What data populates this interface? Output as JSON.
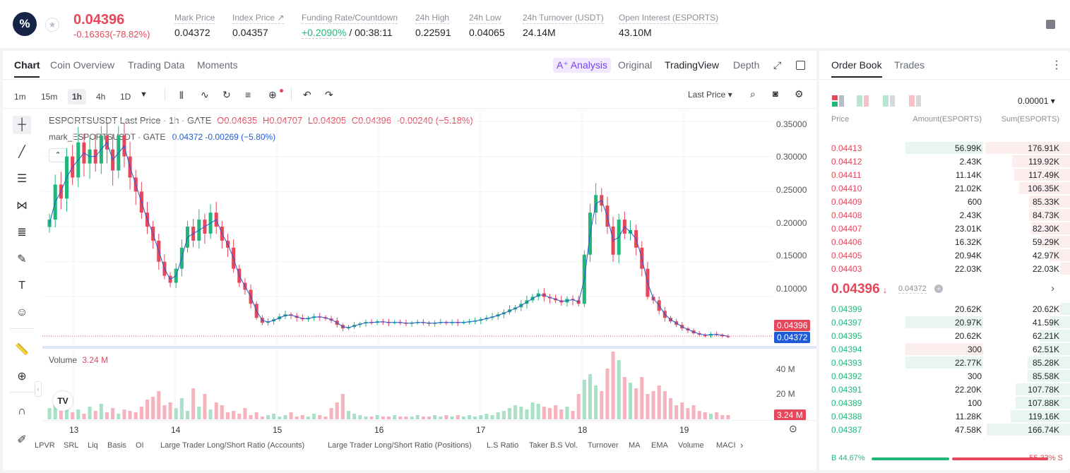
{
  "ticker": {
    "logo_text": "%",
    "star_icon": "star-icon",
    "price": "0.04396",
    "change": "-0.16363(-78.82%)",
    "stats": [
      {
        "label": "Mark Price",
        "value": "0.04372"
      },
      {
        "label": "Index Price ↗",
        "value": "0.04357"
      },
      {
        "label": "Funding Rate/Countdown",
        "value_green": "+0.2090%",
        "value": " / 00:38:11"
      },
      {
        "label": "24h High",
        "value": "0.22591"
      },
      {
        "label": "24h Low",
        "value": "0.04065"
      },
      {
        "label": "24h Turnover (USDT)",
        "value": "24.14M"
      },
      {
        "label": "Open Interest (ESPORTS)",
        "value": "43.10M"
      }
    ]
  },
  "chart_tabs": [
    "Chart",
    "Coin Overview",
    "Trading Data",
    "Moments"
  ],
  "view_tabs": {
    "ai": "A⁺ Analysis",
    "original": "Original",
    "tradingview": "TradingView",
    "depth": "Depth"
  },
  "intervals": [
    "1m",
    "15m",
    "1h",
    "4h",
    "1D"
  ],
  "active_interval": "1h",
  "last_price_select": "Last Price",
  "legend": {
    "line1_name": "ESPORTSUSDT Last Price · 1h · GATE",
    "o": "O0.04635",
    "h": "H0.04707",
    "l": "L0.04305",
    "c": "C0.04396",
    "chg": "-0.00240 (−5.18%)",
    "line2_name": "mark_ESPORTSUSDT · GATE",
    "line2_value": "0.04372 -0.00269 (−5.80%)"
  },
  "volume_legend": {
    "label": "Volume",
    "value": "3.24 M"
  },
  "colors": {
    "up": "#22b77a",
    "down": "#e5475b",
    "mark": "#1f5bd6",
    "accent_ai": "#7b3ff2"
  },
  "chart_data": {
    "type": "candlestick",
    "title": "ESPORTSUSDT Last Price · 1h · GATE",
    "y_ticks": [
      "0.35000",
      "0.30000",
      "0.25000",
      "0.20000",
      "0.15000",
      "0.10000"
    ],
    "ylim": [
      0.03,
      0.36
    ],
    "x_ticks": [
      "13",
      "14",
      "15",
      "16",
      "17",
      "18",
      "19"
    ],
    "last_price_label": "0.04396",
    "mark_price_label": "0.04372",
    "volume_ticks": [
      "40 M",
      "20 M"
    ],
    "volume_last_label": "3.24 M",
    "volume_ylim": [
      0,
      50
    ],
    "close_series": [
      0.21,
      0.26,
      0.24,
      0.3,
      0.27,
      0.32,
      0.29,
      0.31,
      0.29,
      0.33,
      0.31,
      0.28,
      0.33,
      0.3,
      0.27,
      0.25,
      0.22,
      0.2,
      0.18,
      0.15,
      0.13,
      0.12,
      0.14,
      0.17,
      0.2,
      0.18,
      0.21,
      0.19,
      0.22,
      0.2,
      0.18,
      0.17,
      0.14,
      0.12,
      0.11,
      0.09,
      0.07,
      0.063,
      0.065,
      0.068,
      0.072,
      0.075,
      0.073,
      0.07,
      0.068,
      0.07,
      0.072,
      0.071,
      0.069,
      0.066,
      0.06,
      0.055,
      0.057,
      0.06,
      0.062,
      0.064,
      0.063,
      0.065,
      0.064,
      0.063,
      0.064,
      0.063,
      0.062,
      0.063,
      0.064,
      0.063,
      0.062,
      0.063,
      0.064,
      0.063,
      0.064,
      0.063,
      0.064,
      0.065,
      0.066,
      0.068,
      0.07,
      0.072,
      0.075,
      0.078,
      0.082,
      0.085,
      0.09,
      0.095,
      0.1,
      0.105,
      0.1,
      0.098,
      0.095,
      0.092,
      0.097,
      0.095,
      0.09,
      0.16,
      0.22,
      0.245,
      0.23,
      0.2,
      0.16,
      0.21,
      0.19,
      0.195,
      0.17,
      0.14,
      0.1,
      0.095,
      0.08,
      0.07,
      0.065,
      0.06,
      0.055,
      0.052,
      0.048,
      0.046,
      0.045,
      0.047,
      0.046,
      0.044,
      0.04396
    ],
    "volume_series": [
      8,
      12,
      6,
      10,
      5,
      7,
      4,
      9,
      6,
      11,
      5,
      8,
      4,
      7,
      6,
      5,
      9,
      14,
      16,
      20,
      10,
      12,
      8,
      15,
      6,
      22,
      9,
      18,
      7,
      12,
      10,
      5,
      6,
      4,
      8,
      3,
      5,
      2,
      3,
      4,
      2,
      3,
      5,
      2,
      3,
      2,
      4,
      3,
      2,
      8,
      12,
      18,
      6,
      4,
      3,
      2,
      2,
      3,
      2,
      2,
      3,
      2,
      2,
      2,
      3,
      2,
      2,
      3,
      2,
      3,
      2,
      3,
      2,
      3,
      2,
      3,
      4,
      3,
      5,
      6,
      8,
      10,
      9,
      7,
      12,
      11,
      9,
      8,
      10,
      7,
      9,
      6,
      18,
      28,
      32,
      24,
      20,
      36,
      48,
      42,
      30,
      26,
      22,
      30,
      18,
      20,
      24,
      20,
      15,
      10,
      12,
      8,
      10,
      6,
      5,
      4,
      5,
      3,
      3
    ],
    "mark_series_note": ""
  },
  "toolbar_icons": [
    "crosshair-icon",
    "trendline-icon",
    "channel-icon",
    "pattern-icon",
    "fib-icon",
    "brush-icon",
    "text-icon",
    "emoji-icon",
    "ruler-icon",
    "zoom-icon",
    "magnet-icon",
    "pencil-icon"
  ],
  "indicators": [
    "LPVR",
    "SRL",
    "Liq",
    "Basis",
    "OI",
    "Large Trader Long/Short Ratio (Accounts)",
    "Large Trader Long/Short Ratio (Positions)",
    "L.S Ratio",
    "Taker B.S Vol.",
    "Turnover",
    "MA",
    "EMA",
    "Volume",
    "MACI"
  ],
  "order_book": {
    "tabs": [
      "Order Book",
      "Trades"
    ],
    "precision": "0.00001",
    "headers": {
      "price": "Price",
      "amount": "Amount(ESPORTS)",
      "sum": "Sum(ESPORTS)"
    },
    "asks": [
      {
        "price": "0.04413",
        "amount": "56.99K",
        "sum": "176.91K",
        "a": 1.0,
        "s": 1.0
      },
      {
        "price": "0.04412",
        "amount": "2.43K",
        "sum": "119.92K",
        "a": 0.0,
        "s": 0.68
      },
      {
        "price": "0.04411",
        "amount": "11.14K",
        "sum": "117.49K",
        "a": 0.0,
        "s": 0.66
      },
      {
        "price": "0.04410",
        "amount": "21.02K",
        "sum": "106.35K",
        "a": 0.0,
        "s": 0.6
      },
      {
        "price": "0.04409",
        "amount": "600",
        "sum": "85.33K",
        "a": 0.0,
        "s": 0.48
      },
      {
        "price": "0.04408",
        "amount": "2.43K",
        "sum": "84.73K",
        "a": 0.0,
        "s": 0.48
      },
      {
        "price": "0.04407",
        "amount": "23.01K",
        "sum": "82.30K",
        "a": 0.0,
        "s": 0.46
      },
      {
        "price": "0.04406",
        "amount": "16.32K",
        "sum": "59.29K",
        "a": 0.0,
        "s": 0.34
      },
      {
        "price": "0.04405",
        "amount": "20.94K",
        "sum": "42.97K",
        "a": 0.0,
        "s": 0.24
      },
      {
        "price": "0.04403",
        "amount": "22.03K",
        "sum": "22.03K",
        "a": 0.0,
        "s": 0.12
      }
    ],
    "mid_price": "0.04396",
    "mid_mark": "0.04372",
    "bids": [
      {
        "price": "0.04399",
        "amount": "20.62K",
        "sum": "20.62K",
        "a": 0.0,
        "s": 0.12,
        "sell": false
      },
      {
        "price": "0.04397",
        "amount": "20.97K",
        "sum": "41.59K",
        "a": 1.0,
        "s": 0.24,
        "sell": false
      },
      {
        "price": "0.04395",
        "amount": "20.62K",
        "sum": "62.21K",
        "a": 0.0,
        "s": 0.36,
        "sell": false
      },
      {
        "price": "0.04394",
        "amount": "300",
        "sum": "62.51K",
        "a": 1.0,
        "s": 0.36,
        "sell": true
      },
      {
        "price": "0.04393",
        "amount": "22.77K",
        "sum": "85.28K",
        "a": 1.0,
        "s": 0.5,
        "sell": false
      },
      {
        "price": "0.04392",
        "amount": "300",
        "sum": "85.58K",
        "a": 0.0,
        "s": 0.5,
        "sell": false
      },
      {
        "price": "0.04391",
        "amount": "22.20K",
        "sum": "107.78K",
        "a": 0.0,
        "s": 0.64,
        "sell": false
      },
      {
        "price": "0.04389",
        "amount": "100",
        "sum": "107.88K",
        "a": 0.0,
        "s": 0.64,
        "sell": false
      },
      {
        "price": "0.04388",
        "amount": "11.28K",
        "sum": "119.16K",
        "a": 0.0,
        "s": 0.7,
        "sell": false
      },
      {
        "price": "0.04387",
        "amount": "47.58K",
        "sum": "166.74K",
        "a": 0.0,
        "s": 0.98,
        "sell": false
      }
    ],
    "buy_ratio": "B 44.67%",
    "sell_ratio": "55.33% S",
    "buy_fraction": 0.4467
  }
}
